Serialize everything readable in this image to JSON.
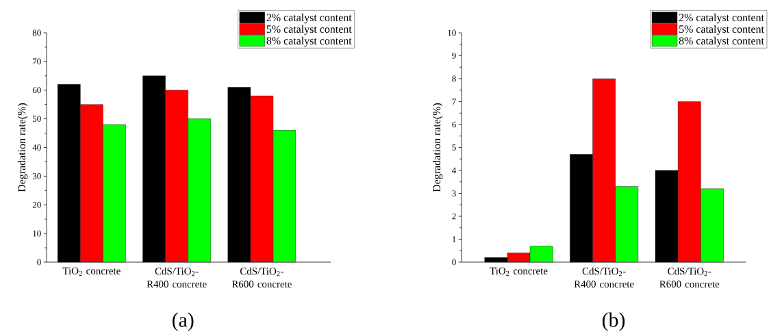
{
  "chart_data": [
    {
      "type": "bar",
      "title": "(a)",
      "ylabel": "Degradation rate(%)",
      "categories": [
        "TiO$_{2}$ concrete",
        "CdS/TiO$_{2}$-R400 concrete",
        "CdS/TiO$_{2}$-R600 concrete"
      ],
      "series": [
        {
          "name": "2% catalyst content",
          "color": "#000000",
          "values": [
            62,
            65,
            61
          ]
        },
        {
          "name": "5% catalyst content",
          "color": "#ff0000",
          "values": [
            55,
            60,
            58
          ]
        },
        {
          "name": "8% catalyst content",
          "color": "#00ff00",
          "values": [
            48,
            50,
            46
          ]
        }
      ],
      "ylim": [
        0,
        80
      ],
      "yticks": [
        0,
        10,
        20,
        30,
        40,
        50,
        60,
        70,
        80
      ],
      "legend": "top right"
    },
    {
      "type": "bar",
      "title": "(b)",
      "ylabel": "Degradation rate(%)",
      "categories": [
        "TiO$_{2}$ concrete",
        "CdS/TiO$_{2}$-R400 concrete",
        "CdS/TiO$_{2}$-R600 concrete"
      ],
      "series": [
        {
          "name": "2% catalyst content",
          "color": "#000000",
          "values": [
            0.2,
            4.7,
            4
          ]
        },
        {
          "name": "5% catalyst content",
          "color": "#ff0000",
          "values": [
            0.4,
            8,
            7
          ]
        },
        {
          "name": "8% catalyst content",
          "color": "#00ff00",
          "values": [
            0.7,
            3.3,
            3.2
          ]
        }
      ],
      "ylim": [
        0,
        10
      ],
      "yticks": [
        0,
        1,
        2,
        3,
        4,
        5,
        6,
        7,
        8,
        9,
        10
      ],
      "legend": "top right"
    }
  ]
}
